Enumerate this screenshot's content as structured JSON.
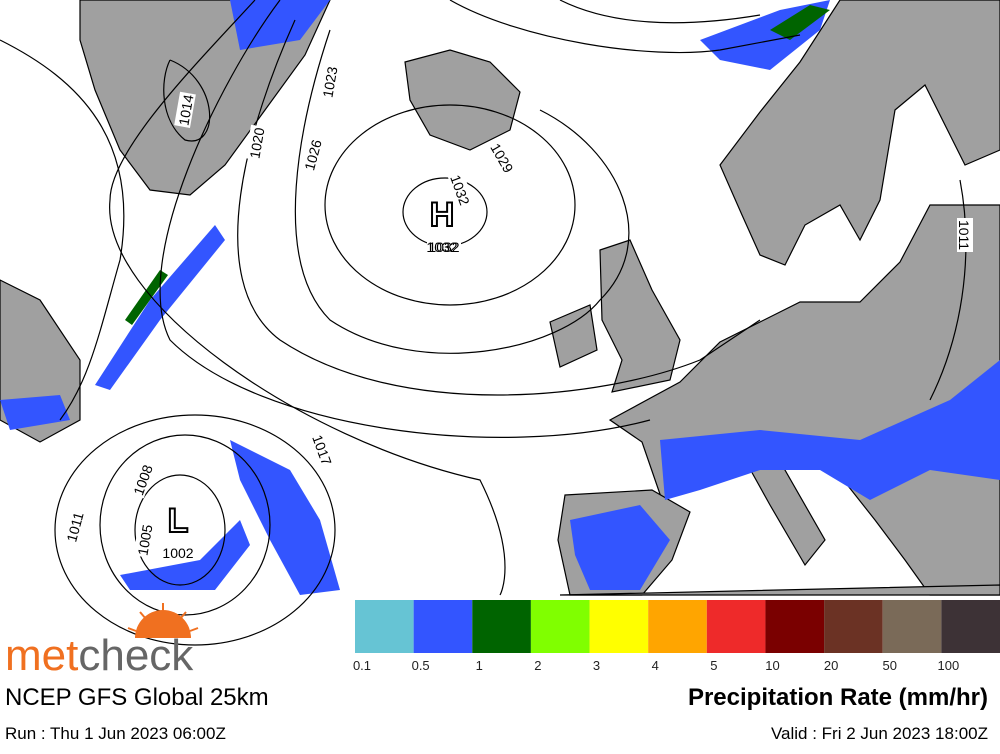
{
  "map": {
    "isobar_labels": [
      "1014",
      "1023",
      "1020",
      "1026",
      "1029",
      "1032",
      "1032",
      "1017",
      "1008",
      "1011",
      "1005",
      "1011"
    ],
    "pressure_centers": [
      {
        "symbol": "H",
        "value": "1032"
      },
      {
        "symbol": "L",
        "value": "1002"
      }
    ]
  },
  "legend": {
    "title": "Precipitation Rate (mm/hr)",
    "bins": [
      {
        "label": "0.1",
        "color": "#66c4d4"
      },
      {
        "label": "0.5",
        "color": "#3355ff"
      },
      {
        "label": "1",
        "color": "#006400"
      },
      {
        "label": "2",
        "color": "#80ff00"
      },
      {
        "label": "3",
        "color": "#ffff00"
      },
      {
        "label": "4",
        "color": "#ffa500"
      },
      {
        "label": "5",
        "color": "#ee2a2a"
      },
      {
        "label": "10",
        "color": "#7a0000"
      },
      {
        "label": "20",
        "color": "#6b3224"
      },
      {
        "label": "50",
        "color": "#7a6a58"
      },
      {
        "label": "100",
        "color": "#3d3236"
      }
    ]
  },
  "footer": {
    "brand": [
      "met",
      "check"
    ],
    "model": "NCEP GFS Global 25km",
    "run": "Run : Thu 1 Jun 2023 06:00Z",
    "valid": "Valid : Fri 2 Jun 2023 18:00Z"
  }
}
